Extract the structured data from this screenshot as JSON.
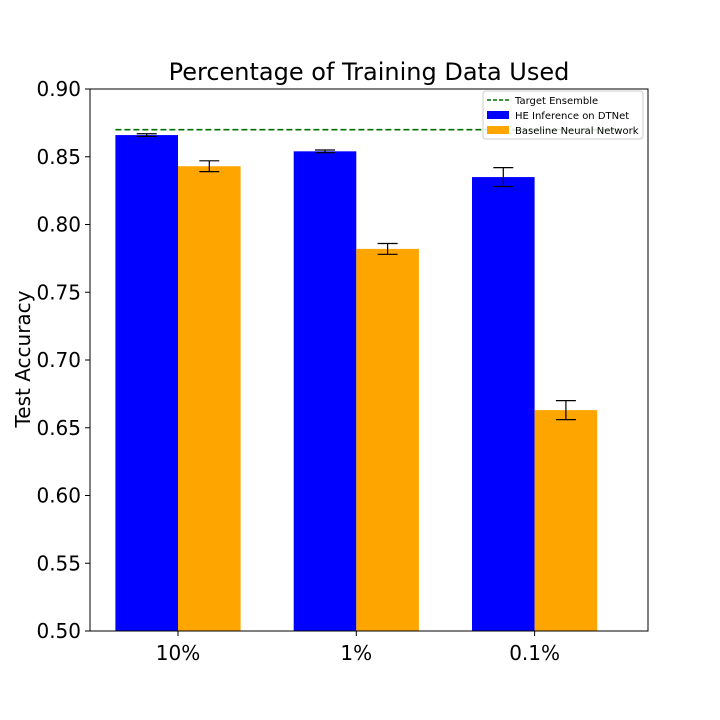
{
  "chart_data": {
    "type": "bar",
    "title": "Percentage of Training Data Used",
    "xlabel": "",
    "ylabel": "Test Accuracy",
    "ylim": [
      0.5,
      0.9
    ],
    "yticks": [
      "0.50",
      "0.55",
      "0.60",
      "0.65",
      "0.70",
      "0.75",
      "0.80",
      "0.85",
      "0.90"
    ],
    "categories": [
      "10%",
      "1%",
      "0.1%"
    ],
    "series": [
      {
        "name": "HE Inference on DTNet",
        "color": "#0000ff",
        "values": [
          0.866,
          0.854,
          0.835
        ],
        "errors": [
          0.001,
          0.001,
          0.007
        ]
      },
      {
        "name": "Baseline Neural Network",
        "color": "#ffa500",
        "values": [
          0.843,
          0.782,
          0.663
        ],
        "errors": [
          0.004,
          0.004,
          0.007
        ]
      }
    ],
    "reference_line": {
      "name": "Target Ensemble",
      "value": 0.87,
      "color": "#007000",
      "style": "dashed"
    },
    "legend": {
      "position": "top-right"
    },
    "grid": false
  }
}
